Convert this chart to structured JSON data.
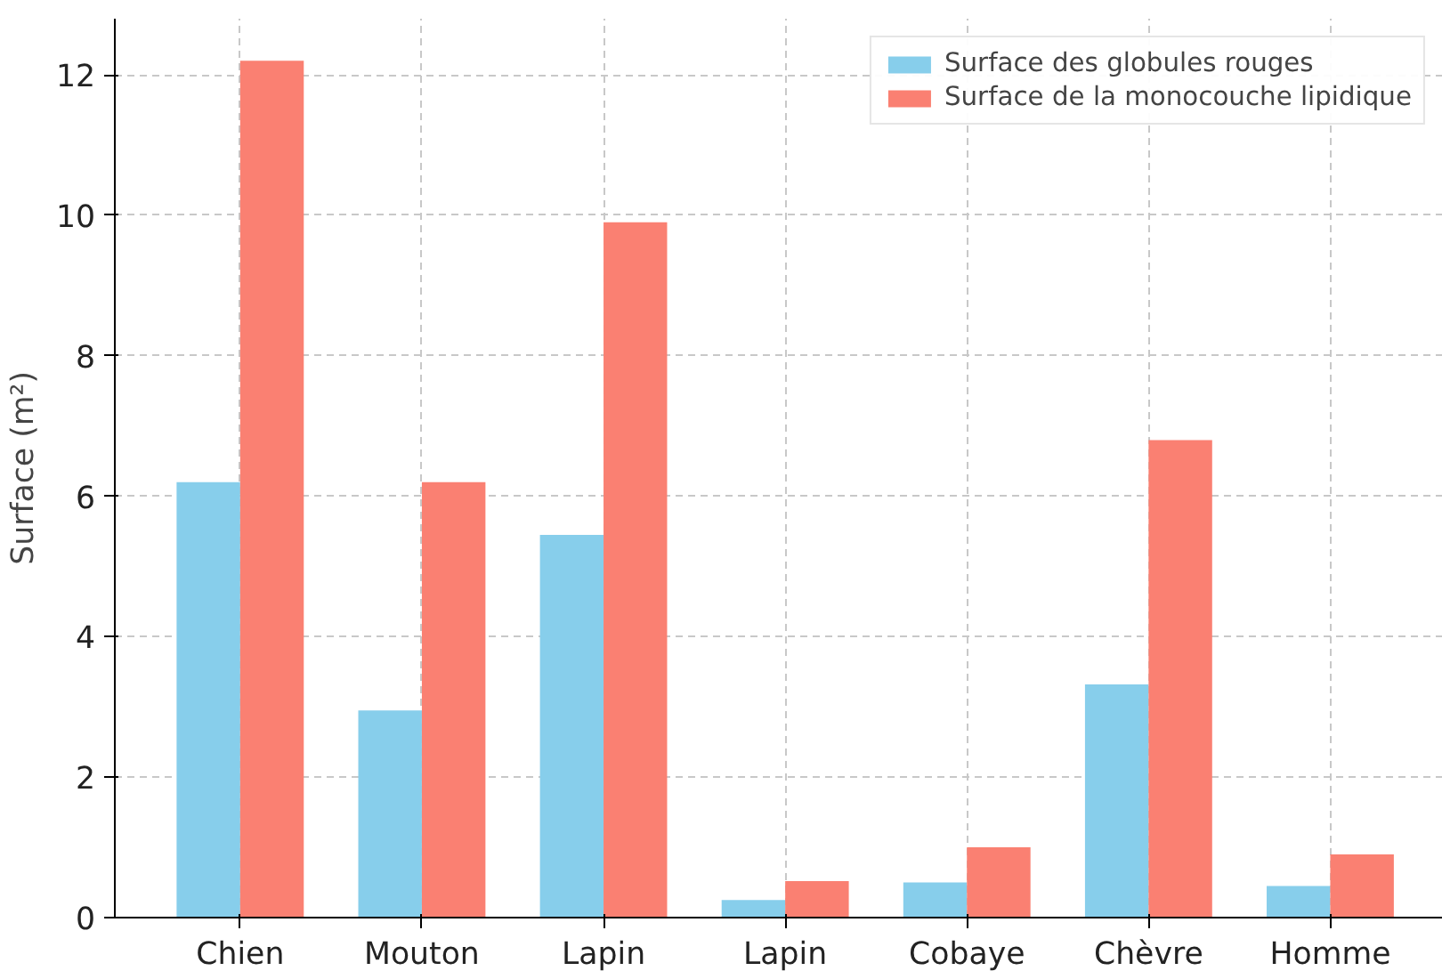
{
  "chart_data": {
    "type": "bar",
    "ylabel": "Surface (m²)",
    "categories": [
      "Chien",
      "Mouton",
      "Lapin",
      "Lapin",
      "Cobaye",
      "Chèvre",
      "Homme"
    ],
    "series": [
      {
        "name": "Surface des globules rouges",
        "color": "#87ceeb",
        "values": [
          6.2,
          2.95,
          5.45,
          0.25,
          0.5,
          3.32,
          0.45
        ]
      },
      {
        "name": "Surface de la monocouche lipidique",
        "color": "#fa8072",
        "values": [
          12.2,
          6.2,
          9.9,
          0.52,
          1.0,
          6.8,
          0.9
        ]
      }
    ],
    "ylim": [
      0,
      12.8
    ],
    "yticks": [
      0,
      2,
      4,
      6,
      8,
      10,
      12
    ],
    "grid": true,
    "legend": "top right"
  }
}
